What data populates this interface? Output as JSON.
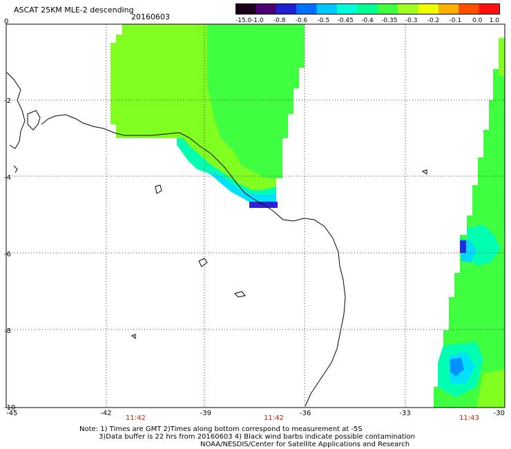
{
  "header": {
    "title": "ASCAT 25KM MLE-2 descending",
    "date": "20160603"
  },
  "colorbar": {
    "labels": [
      "-15.0",
      "-1.0",
      "-0.8",
      "-0.6",
      "-0.5",
      "-0.45",
      "-0.4",
      "-0.35",
      "-0.3",
      "-0.2",
      "-0.1",
      "0.0",
      "1.0"
    ],
    "colors": [
      "#1a0018",
      "#4a0070",
      "#2020d0",
      "#0070ff",
      "#00c8ff",
      "#00ffd8",
      "#00ff90",
      "#40ff40",
      "#a0ff20",
      "#f0ff00",
      "#ffb000",
      "#ff5000",
      "#ff1010"
    ]
  },
  "map": {
    "x_ticks": [
      "-45",
      "-42",
      "-39",
      "-36",
      "-33",
      "-30"
    ],
    "y_ticks": [
      "0",
      "-2",
      "-4",
      "-6",
      "-8",
      "-10"
    ],
    "times": [
      "11:42",
      "11:42",
      "11:43"
    ]
  },
  "notes": {
    "line1": "Note: 1) Times are GMT 2)Times along bottom correspond to measurement at -5S",
    "line2": "3)Data buffer is 22 hrs from 20160603 4) Black wind barbs indicate possible contamination",
    "line3": "NOAA/NESDIS/Center for Satellite Applications and Research"
  },
  "colors": {
    "frame": "#000000",
    "grid": "#000000",
    "time_text": "#cc2200"
  }
}
